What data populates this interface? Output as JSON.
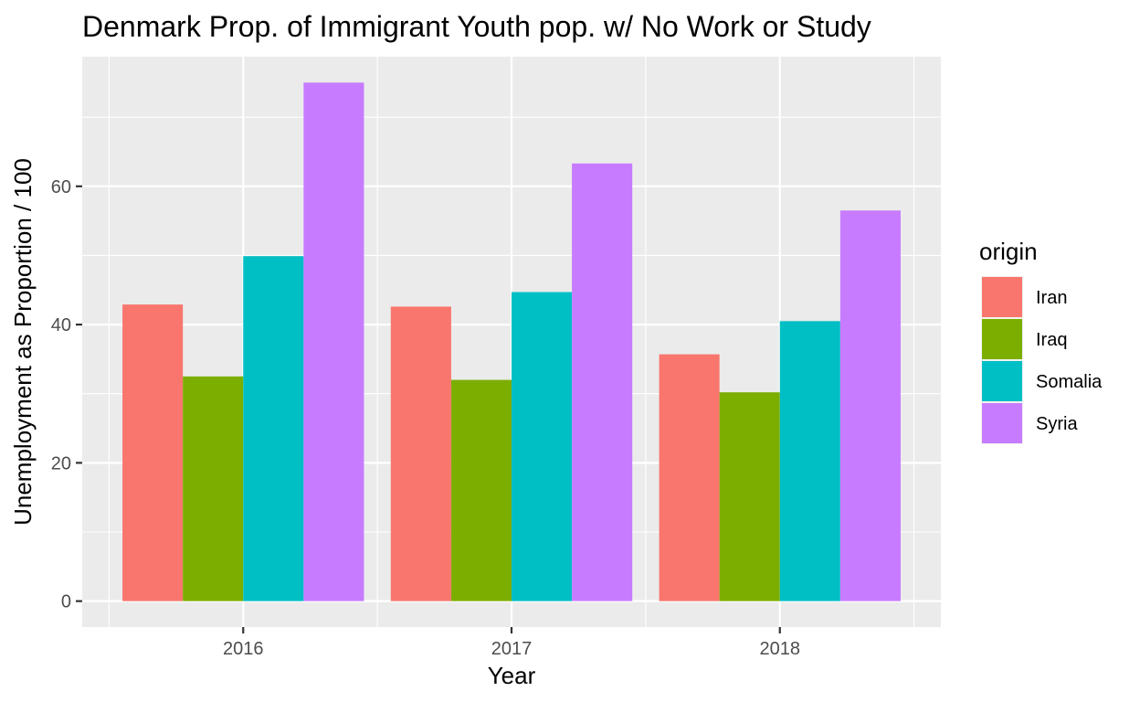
{
  "chart_data": {
    "type": "bar",
    "title": "Denmark Prop. of Immigrant Youth pop. w/ No Work or Study",
    "xlabel": "Year",
    "ylabel": "Unemployment as Proportion / 100",
    "categories": [
      "2016",
      "2017",
      "2018"
    ],
    "series": [
      {
        "name": "Iran",
        "color": "#F8766D",
        "values": [
          42.9,
          42.6,
          35.7
        ]
      },
      {
        "name": "Iraq",
        "color": "#7CAE00",
        "values": [
          32.5,
          32.0,
          30.2
        ]
      },
      {
        "name": "Somalia",
        "color": "#00BFC4",
        "values": [
          49.9,
          44.7,
          40.5
        ]
      },
      {
        "name": "Syria",
        "color": "#C77CFF",
        "values": [
          75.0,
          63.3,
          56.5
        ]
      }
    ],
    "ylim": [
      -3.75,
      78.75
    ],
    "yticks": [
      0,
      20,
      40,
      60
    ],
    "y_minor_ticks": [
      10,
      30,
      50,
      70
    ],
    "legend_title": "origin",
    "legend_position": "right",
    "grid": true,
    "panel_background": "#EBEBEB",
    "grid_color": "#FFFFFF"
  }
}
